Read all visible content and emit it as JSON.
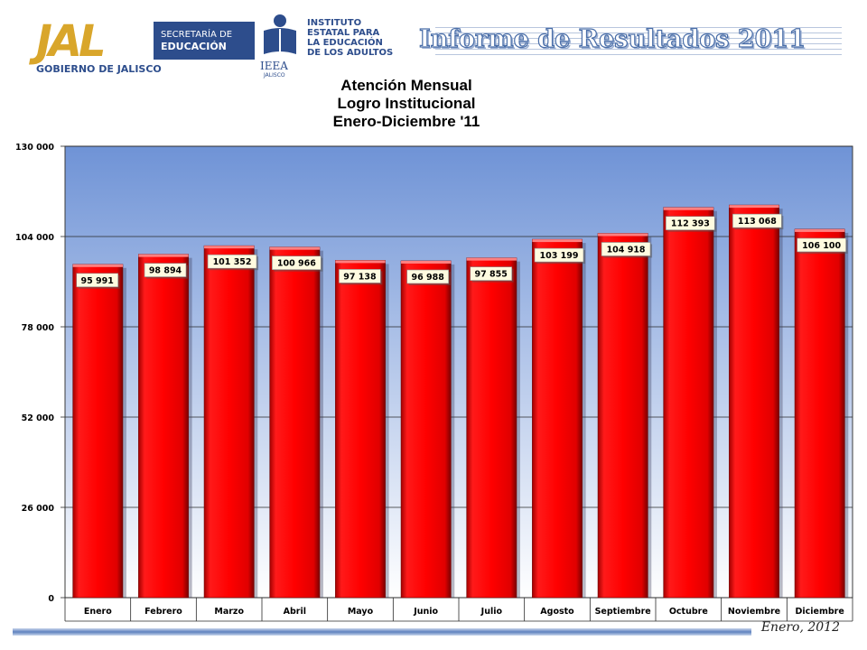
{
  "header": {
    "jal_mark": "JAL",
    "jal_box_line1": "SECRETARÍA DE",
    "jal_box_line2": "EDUCACIÓN",
    "jal_gov": "GOBIERNO DE JALISCO",
    "ieea_lines": [
      "INSTITUTO",
      "ESTATAL PARA",
      "LA EDUCACIÓN",
      "DE LOS ADULTOS"
    ],
    "ieea_abbr": "IEEA",
    "ieea_state": "JALISCO",
    "banner_title": "Informe de Resultados 2011"
  },
  "footer": {
    "date": "Enero, 2012"
  },
  "colors": {
    "bar": "#ff0000",
    "bar_dark": "#9b0000",
    "plot_top": "#6f93d6",
    "plot_bottom": "#ffffff",
    "label_bg": "#fffbe0",
    "brand_blue": "#2d4d8c",
    "brand_gold": "#d9a62b"
  },
  "chart_data": {
    "type": "bar",
    "title_lines": [
      "Atención Mensual",
      "Logro Institucional",
      "Enero-Diciembre '11"
    ],
    "categories": [
      "Enero",
      "Febrero",
      "Marzo",
      "Abril",
      "Mayo",
      "Junio",
      "Julio",
      "Agosto",
      "Septiembre",
      "Octubre",
      "Noviembre",
      "Diciembre"
    ],
    "values": [
      95991,
      98894,
      101352,
      100966,
      97138,
      96988,
      97855,
      103199,
      104918,
      112393,
      113068,
      106100
    ],
    "value_labels": [
      "95 991",
      "98 894",
      "101 352",
      "100 966",
      "97 138",
      "96 988",
      "97 855",
      "103 199",
      "104 918",
      "112 393",
      "113 068",
      "106 100"
    ],
    "y_ticks": [
      0,
      26000,
      52000,
      78000,
      104000,
      130000
    ],
    "y_tick_labels": [
      "0",
      "26 000",
      "52 000",
      "78 000",
      "104 000",
      "130 000"
    ],
    "ylim": [
      0,
      130000
    ],
    "grid": true,
    "legend": "none"
  }
}
